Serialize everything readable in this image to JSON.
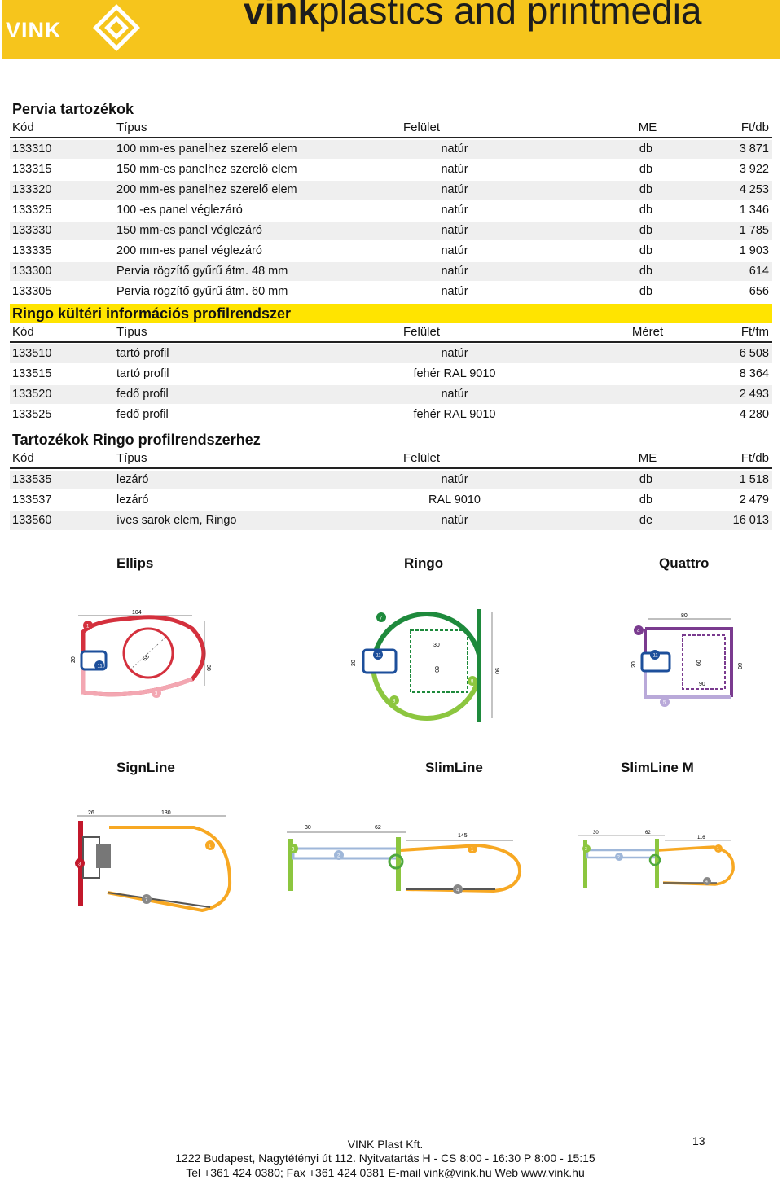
{
  "banner": {
    "logo_text": "VINK",
    "brand_bold": "vink",
    "brand_rest": "plastics and printmedia"
  },
  "colors": {
    "banner": "#f6c51c",
    "section_highlight": "#ffe400",
    "row_alt": "#efefef"
  },
  "pervia": {
    "title": "Pervia tartozékok",
    "headers": {
      "kod": "Kód",
      "tipus": "Típus",
      "felulet": "Felület",
      "me": "ME",
      "ar": "Ft/db"
    },
    "rows": [
      {
        "kod": "133310",
        "tipus": "100 mm-es panelhez szerelő elem",
        "felulet": "natúr",
        "me": "db",
        "ar": "3 871"
      },
      {
        "kod": "133315",
        "tipus": "150 mm-es panelhez szerelő elem",
        "felulet": "natúr",
        "me": "db",
        "ar": "3 922"
      },
      {
        "kod": "133320",
        "tipus": "200 mm-es panelhez szerelő elem",
        "felulet": "natúr",
        "me": "db",
        "ar": "4 253"
      },
      {
        "kod": "133325",
        "tipus": "100 -es panel véglezáró",
        "felulet": "natúr",
        "me": "db",
        "ar": "1 346"
      },
      {
        "kod": "133330",
        "tipus": "150 mm-es panel véglezáró",
        "felulet": "natúr",
        "me": "db",
        "ar": "1 785"
      },
      {
        "kod": "133335",
        "tipus": "200 mm-es panel véglezáró",
        "felulet": "natúr",
        "me": "db",
        "ar": "1 903"
      },
      {
        "kod": "133300",
        "tipus": "Pervia rögzítő gyűrű átm. 48 mm",
        "felulet": "natúr",
        "me": "db",
        "ar": "614"
      },
      {
        "kod": "133305",
        "tipus": "Pervia rögzítő gyűrű átm. 60 mm",
        "felulet": "natúr",
        "me": "db",
        "ar": "656"
      }
    ]
  },
  "ringo": {
    "title": "Ringo kültéri információs profilrendszer",
    "headers": {
      "kod": "Kód",
      "tipus": "Típus",
      "felulet": "Felület",
      "meret": "Méret",
      "ar": "Ft/fm"
    },
    "rows": [
      {
        "kod": "133510",
        "tipus": "tartó profil",
        "felulet": "natúr",
        "ar": "6 508"
      },
      {
        "kod": "133515",
        "tipus": "tartó profil",
        "felulet": "fehér RAL 9010",
        "ar": "8 364"
      },
      {
        "kod": "133520",
        "tipus": "fedő profil",
        "felulet": "natúr",
        "ar": "2 493"
      },
      {
        "kod": "133525",
        "tipus": "fedő profil",
        "felulet": "fehér RAL 9010",
        "ar": "4 280"
      }
    ]
  },
  "tartozekok": {
    "title": "Tartozékok Ringo profilrendszerhez",
    "headers": {
      "kod": "Kód",
      "tipus": "Típus",
      "felulet": "Felület",
      "me": "ME",
      "ar": "Ft/db"
    },
    "rows": [
      {
        "kod": "133535",
        "tipus": "lezáró",
        "felulet": "natúr",
        "me": "db",
        "ar": "1 518"
      },
      {
        "kod": "133537",
        "tipus": "lezáró",
        "felulet": "RAL 9010",
        "me": "db",
        "ar": "2 479"
      },
      {
        "kod": "133560",
        "tipus": "íves sarok elem, Ringo",
        "felulet": "natúr",
        "me": "de",
        "ar": "16 013"
      }
    ]
  },
  "profiles_row1": [
    "Ellips",
    "Ringo",
    "Quattro"
  ],
  "profiles_row2": [
    "SignLine",
    "SlimLine",
    "SlimLine M"
  ],
  "drawing_labels": {
    "ellips_width": "104",
    "ellips_diam": "55",
    "ellips_height": "80",
    "ellips_side": "20",
    "ringo_inner": "30",
    "ringo_mid": "60",
    "ringo_height": "90",
    "ringo_side": "20",
    "quattro_top": "80",
    "quattro_mid": "60",
    "quattro_bottom": "90",
    "quattro_height": "80",
    "quattro_side": "20",
    "signline_a": "26",
    "signline_b": "130",
    "slimline_a": "30",
    "slimline_b": "62",
    "slimline_c": "145",
    "slimlinem_a": "30",
    "slimlinem_b": "62",
    "slimlinem_c": "116"
  },
  "footer": {
    "company": "VINK Plast Kft.",
    "address": "1222 Budapest, Nagytétényi út 112. Nyitvatartás H - CS 8:00 - 16:30 P 8:00 - 15:15",
    "contact": "Tel +361 424 0380; Fax +361 424 0381 E-mail vink@vink.hu Web www.vink.hu",
    "page_number": "13"
  }
}
